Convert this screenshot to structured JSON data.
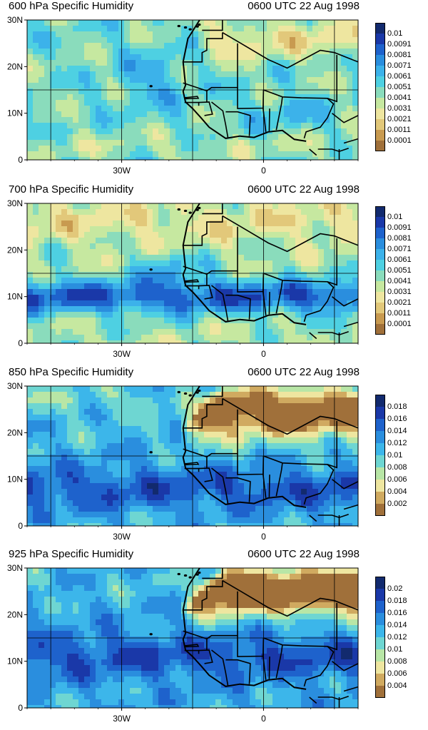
{
  "panels": [
    {
      "title": "600 hPa Specific Humidity",
      "time": "0600 UTC 22 Aug 1998",
      "levels": [
        0.0001,
        0.0011,
        0.0021,
        0.0031,
        0.0041,
        0.0051,
        0.0061,
        0.0071,
        0.0081,
        0.0091,
        0.01
      ],
      "label_texts": [
        "0.0001",
        "0.0011",
        "0.0021",
        "0.0031",
        "0.0041",
        "0.0051",
        "0.0061",
        "0.0071",
        "0.0081",
        "0.0091",
        "0.01"
      ],
      "colors": [
        "#a0703a",
        "#c89a50",
        "#e2c87a",
        "#eee6a0",
        "#c6e8a0",
        "#8adcbc",
        "#4ed0e2",
        "#3cb2ea",
        "#2a8ede",
        "#1e62cc",
        "#1a38a8",
        "#122a6e"
      ]
    },
    {
      "title": "700 hPa Specific Humidity",
      "time": "0600 UTC 22 Aug 1998",
      "levels": [
        0.0001,
        0.0011,
        0.0021,
        0.0031,
        0.0041,
        0.0051,
        0.0061,
        0.0071,
        0.0081,
        0.0091,
        0.01
      ],
      "label_texts": [
        "0.0001",
        "0.0011",
        "0.0021",
        "0.0031",
        "0.0041",
        "0.0051",
        "0.0061",
        "0.0071",
        "0.0081",
        "0.0091",
        "0.01"
      ],
      "colors": [
        "#a0703a",
        "#c89a50",
        "#e2c87a",
        "#eee6a0",
        "#c6e8a0",
        "#8adcbc",
        "#4ed0e2",
        "#3cb2ea",
        "#2a8ede",
        "#1e62cc",
        "#1a38a8",
        "#122a6e"
      ]
    },
    {
      "title": "850 hPa Specific Humidity",
      "time": "0600 UTC 22 Aug 1998",
      "levels": [
        0.002,
        0.004,
        0.006,
        0.008,
        0.01,
        0.012,
        0.014,
        0.016,
        0.018
      ],
      "label_texts": [
        "0.002",
        "0.004",
        "0.006",
        "0.008",
        "0.01",
        "0.012",
        "0.014",
        "0.016",
        "0.018"
      ],
      "colors": [
        "#a0703a",
        "#d0aa60",
        "#eee6a0",
        "#b8e6a6",
        "#6ed6d2",
        "#3cb6ea",
        "#2a8ede",
        "#1e62cc",
        "#1a38a8",
        "#122a6e"
      ]
    },
    {
      "title": "925 hPa Specific Humidity",
      "time": "0600 UTC 22 Aug 1998",
      "levels": [
        0.004,
        0.006,
        0.008,
        0.01,
        0.012,
        0.014,
        0.016,
        0.018,
        0.02
      ],
      "label_texts": [
        "0.004",
        "0.006",
        "0.008",
        "0.01",
        "0.012",
        "0.014",
        "0.016",
        "0.018",
        "0.02"
      ],
      "colors": [
        "#a0703a",
        "#d0aa60",
        "#eee6a0",
        "#b8e6a6",
        "#6ed6d2",
        "#3cb6ea",
        "#2a8ede",
        "#1e62cc",
        "#1a38a8",
        "#122a6e"
      ]
    }
  ],
  "axes": {
    "lon_range": [
      -50,
      20
    ],
    "lat_range": [
      0,
      30
    ],
    "lat_tick_values": [
      0,
      10,
      20,
      30
    ],
    "lat_tick_labels": [
      "0",
      "10N",
      "20N",
      "30N"
    ],
    "lon_tick_values": [
      -30,
      0
    ],
    "lon_tick_labels": [
      "30W",
      "0"
    ],
    "grid_lon": [
      -45,
      -30,
      -15,
      0,
      15
    ],
    "grid_lat": [
      15
    ]
  },
  "chart_data": [
    {
      "type": "heatmap",
      "title": "600 hPa Specific Humidity",
      "subtitle": "0600 UTC 22 Aug 1998",
      "x_range": [
        -50,
        20
      ],
      "y_range": [
        0,
        30
      ],
      "levels": [
        0.0001,
        0.0011,
        0.0021,
        0.0031,
        0.0041,
        0.0051,
        0.0061,
        0.0071,
        0.0081,
        0.0091,
        0.01
      ]
    },
    {
      "type": "heatmap",
      "title": "700 hPa Specific Humidity",
      "subtitle": "0600 UTC 22 Aug 1998",
      "x_range": [
        -50,
        20
      ],
      "y_range": [
        0,
        30
      ],
      "levels": [
        0.0001,
        0.0011,
        0.0021,
        0.0031,
        0.0041,
        0.0051,
        0.0061,
        0.0071,
        0.0081,
        0.0091,
        0.01
      ]
    },
    {
      "type": "heatmap",
      "title": "850 hPa Specific Humidity",
      "subtitle": "0600 UTC 22 Aug 1998",
      "x_range": [
        -50,
        20
      ],
      "y_range": [
        0,
        30
      ],
      "levels": [
        0.002,
        0.004,
        0.006,
        0.008,
        0.01,
        0.012,
        0.014,
        0.016,
        0.018
      ]
    },
    {
      "type": "heatmap",
      "title": "925 hPa Specific Humidity",
      "subtitle": "0600 UTC 22 Aug 1998",
      "x_range": [
        -50,
        20
      ],
      "y_range": [
        0,
        30
      ],
      "levels": [
        0.004,
        0.006,
        0.008,
        0.01,
        0.012,
        0.014,
        0.016,
        0.018,
        0.02
      ]
    }
  ]
}
